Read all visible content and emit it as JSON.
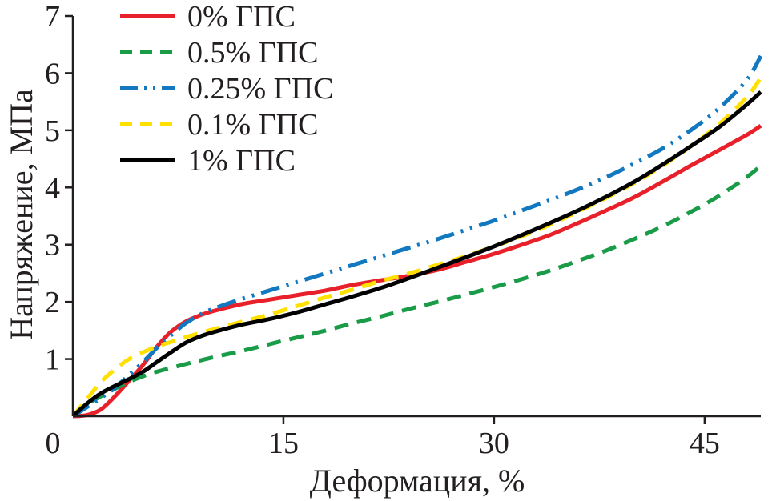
{
  "chart_data": {
    "type": "line",
    "title": "",
    "xlabel": "Деформация, %",
    "ylabel": "Напряжение, МПа",
    "xlim": [
      0,
      49
    ],
    "ylim": [
      0,
      7
    ],
    "x_ticks": [
      "0",
      "15",
      "30",
      "45"
    ],
    "x_tick_values": [
      0,
      15,
      30,
      45
    ],
    "y_ticks": [
      "1",
      "2",
      "3",
      "4",
      "5",
      "6",
      "7"
    ],
    "y_tick_values": [
      1,
      2,
      3,
      4,
      5,
      6,
      7
    ],
    "legend_position": "top-left",
    "series": [
      {
        "name": "0% ГПС",
        "color": "#e8202a",
        "dash": "solid",
        "x": [
          0,
          1,
          2,
          3,
          4,
          5,
          6,
          7,
          8,
          9,
          10,
          12,
          14,
          16,
          18,
          20,
          22,
          24,
          26,
          28,
          30,
          32,
          34,
          36,
          38,
          40,
          42,
          44,
          46,
          48,
          49
        ],
        "y": [
          0,
          0.02,
          0.12,
          0.35,
          0.62,
          0.9,
          1.22,
          1.48,
          1.65,
          1.76,
          1.84,
          1.96,
          2.04,
          2.12,
          2.2,
          2.3,
          2.38,
          2.46,
          2.56,
          2.7,
          2.84,
          3.0,
          3.17,
          3.38,
          3.6,
          3.83,
          4.1,
          4.38,
          4.65,
          4.92,
          5.08
        ]
      },
      {
        "name": "0.5% ГПС",
        "color": "#1a9b48",
        "dash": "dashed",
        "x": [
          0,
          1,
          2,
          3,
          4,
          5,
          6,
          8,
          10,
          12,
          14,
          16,
          18,
          20,
          22,
          24,
          26,
          28,
          30,
          32,
          34,
          36,
          38,
          40,
          42,
          44,
          46,
          48,
          49
        ],
        "y": [
          0,
          0.2,
          0.35,
          0.48,
          0.6,
          0.7,
          0.78,
          0.91,
          1.03,
          1.14,
          1.26,
          1.38,
          1.5,
          1.63,
          1.75,
          1.88,
          2.0,
          2.13,
          2.26,
          2.4,
          2.55,
          2.72,
          2.9,
          3.1,
          3.32,
          3.57,
          3.85,
          4.18,
          4.38
        ]
      },
      {
        "name": "0.25% ГПС",
        "color": "#1278bf",
        "dash": "dash-dot-dot",
        "x": [
          0,
          1,
          2,
          3,
          4,
          5,
          6,
          7,
          8,
          9,
          10,
          12,
          14,
          16,
          18,
          20,
          22,
          24,
          26,
          28,
          30,
          32,
          34,
          36,
          38,
          40,
          42,
          44,
          46,
          48,
          49
        ],
        "y": [
          0,
          0.16,
          0.32,
          0.5,
          0.72,
          0.95,
          1.2,
          1.42,
          1.62,
          1.77,
          1.88,
          2.05,
          2.2,
          2.35,
          2.5,
          2.65,
          2.8,
          2.95,
          3.1,
          3.26,
          3.42,
          3.6,
          3.78,
          3.97,
          4.18,
          4.42,
          4.68,
          5.0,
          5.38,
          5.88,
          6.3
        ]
      },
      {
        "name": "0.1% ГПС",
        "color": "#ffe000",
        "dash": "dashed",
        "x": [
          0,
          1,
          2,
          3,
          4,
          5,
          6,
          7,
          8,
          10,
          12,
          14,
          16,
          18,
          20,
          22,
          24,
          26,
          28,
          30,
          32,
          34,
          36,
          38,
          40,
          42,
          44,
          46,
          48,
          49
        ],
        "y": [
          0,
          0.3,
          0.6,
          0.82,
          1.0,
          1.12,
          1.22,
          1.3,
          1.38,
          1.52,
          1.65,
          1.78,
          1.93,
          2.08,
          2.22,
          2.37,
          2.5,
          2.65,
          2.8,
          2.97,
          3.15,
          3.35,
          3.58,
          3.82,
          4.08,
          4.38,
          4.72,
          5.1,
          5.58,
          5.92
        ]
      },
      {
        "name": "1% ГПС",
        "color": "#000000",
        "dash": "solid",
        "x": [
          0,
          1,
          2,
          3,
          4,
          5,
          6,
          7,
          8,
          9,
          10,
          12,
          14,
          16,
          18,
          20,
          22,
          24,
          26,
          28,
          30,
          32,
          34,
          36,
          38,
          40,
          42,
          44,
          46,
          48,
          49
        ],
        "y": [
          0,
          0.22,
          0.4,
          0.53,
          0.65,
          0.78,
          0.95,
          1.12,
          1.28,
          1.39,
          1.47,
          1.6,
          1.7,
          1.82,
          1.96,
          2.1,
          2.25,
          2.42,
          2.6,
          2.78,
          2.97,
          3.17,
          3.38,
          3.6,
          3.84,
          4.1,
          4.4,
          4.72,
          5.05,
          5.45,
          5.67
        ]
      }
    ]
  }
}
